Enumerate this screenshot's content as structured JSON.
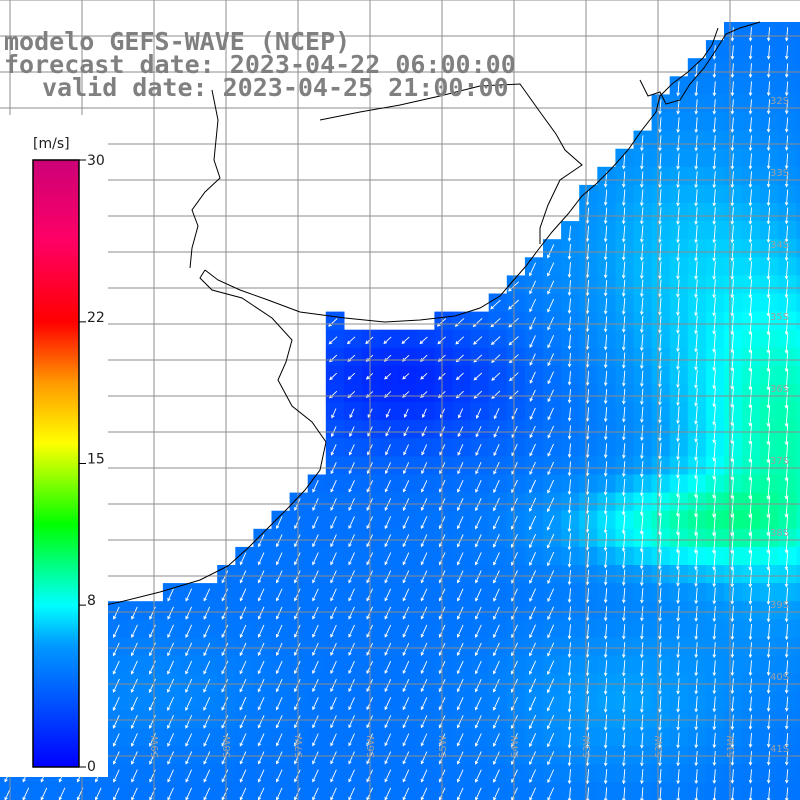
{
  "header": {
    "line1": "modelo GEFS-WAVE (NCEP)",
    "line2": "forecast date: 2023-04-22 06:00:00",
    "line3": "valid date: 2023-04-25 21:00:00"
  },
  "colorbar": {
    "unit": "[m/s]",
    "ticks": [
      "30",
      "22",
      "15",
      "8",
      "0"
    ],
    "tick_values": [
      30,
      22,
      15,
      8,
      0
    ],
    "min": 0,
    "max": 30,
    "stops": [
      {
        "v": 0,
        "c": "#0000ff"
      },
      {
        "v": 6,
        "c": "#0099ff"
      },
      {
        "v": 8,
        "c": "#00ffff"
      },
      {
        "v": 12,
        "c": "#00ff00"
      },
      {
        "v": 16,
        "c": "#ffff00"
      },
      {
        "v": 19,
        "c": "#ff9900"
      },
      {
        "v": 22,
        "c": "#ff0000"
      },
      {
        "v": 26,
        "c": "#ff0066"
      },
      {
        "v": 30,
        "c": "#cc0077"
      }
    ]
  },
  "lat_labels": [
    "32S",
    "33S",
    "34S",
    "35S",
    "36S",
    "37S",
    "38S",
    "39S",
    "40S",
    "41S"
  ],
  "lon_labels": [
    "61W",
    "60W",
    "59W",
    "58W",
    "57W",
    "56W",
    "55W",
    "54W",
    "53W",
    "52W",
    "51W"
  ],
  "colors": {
    "land": "#ffffff",
    "grid": "#8c8c8c",
    "coast": "#000000",
    "arrow": "#ffffff"
  }
}
